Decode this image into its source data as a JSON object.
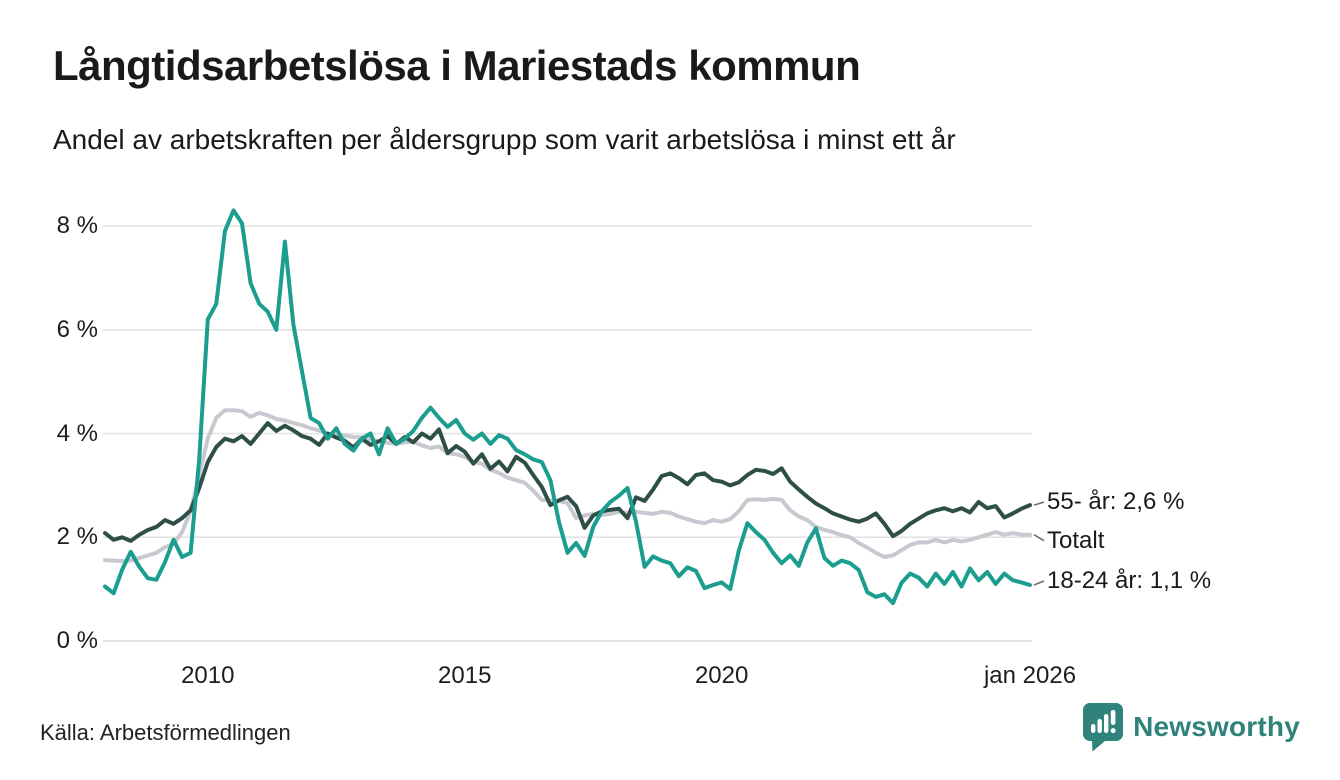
{
  "header": {
    "title": "Långtidsarbetslösa i Mariestads kommun",
    "subtitle": "Andel av arbetskraften per åldersgrupp som varit arbetslösa i minst ett år"
  },
  "footer": {
    "source": "Källa: Arbetsförmedlingen",
    "brand": "Newsworthy"
  },
  "colors": {
    "teal_line": "#1b9e8f",
    "dark_line": "#2e4f46",
    "gray_line": "#c8c8d1",
    "gridline": "#e2e2e2",
    "baseline": "#d8d8d8",
    "connector": "#6e6e6e",
    "brand_teal": "#2f837b"
  },
  "chart_data": {
    "type": "line",
    "title": "Långtidsarbetslösa i Mariestads kommun",
    "subtitle": "Andel av arbetskraften per åldersgrupp som varit arbetslösa i minst ett år",
    "unit": "%",
    "x_start": 2008.0,
    "x_step": 0.1666667,
    "x_range": [
      2008.0,
      2026.0
    ],
    "ylim": [
      0,
      8.6
    ],
    "grid": "horizontal",
    "legend_position": "right-end-labels",
    "y_axis": {
      "ticks": [
        {
          "label": "8 %",
          "value": 8
        },
        {
          "label": "6 %",
          "value": 6
        },
        {
          "label": "4 %",
          "value": 4
        },
        {
          "label": "2 %",
          "value": 2
        },
        {
          "label": "0 %",
          "value": 0
        }
      ]
    },
    "x_axis": {
      "ticks": [
        {
          "label": "2010",
          "year": 2010
        },
        {
          "label": "2015",
          "year": 2015
        },
        {
          "label": "2020",
          "year": 2020
        },
        {
          "label": "jan 2026",
          "year": 2026
        }
      ]
    },
    "series": [
      {
        "name": "55- år",
        "end_label": "55- år: 2,6 %",
        "end_value_label": "2,6 %",
        "color": "#2e4f46",
        "z": 2,
        "label_dy": -3,
        "values": [
          2.08,
          1.95,
          2.0,
          1.93,
          2.05,
          2.14,
          2.2,
          2.33,
          2.26,
          2.37,
          2.52,
          2.95,
          3.45,
          3.74,
          3.9,
          3.85,
          3.95,
          3.8,
          4.0,
          4.2,
          4.05,
          4.15,
          4.06,
          3.95,
          3.9,
          3.78,
          4.0,
          3.92,
          3.86,
          3.73,
          3.9,
          3.78,
          3.85,
          3.95,
          3.8,
          3.93,
          3.83,
          4.0,
          3.9,
          4.08,
          3.62,
          3.76,
          3.65,
          3.42,
          3.6,
          3.32,
          3.46,
          3.27,
          3.55,
          3.44,
          3.2,
          2.97,
          2.62,
          2.71,
          2.78,
          2.6,
          2.18,
          2.42,
          2.5,
          2.53,
          2.55,
          2.37,
          2.77,
          2.7,
          2.92,
          3.18,
          3.23,
          3.14,
          3.02,
          3.2,
          3.23,
          3.1,
          3.07,
          3.0,
          3.06,
          3.2,
          3.3,
          3.28,
          3.22,
          3.33,
          3.07,
          2.92,
          2.78,
          2.65,
          2.56,
          2.46,
          2.4,
          2.34,
          2.3,
          2.36,
          2.46,
          2.26,
          2.02,
          2.12,
          2.26,
          2.36,
          2.46,
          2.52,
          2.56,
          2.5,
          2.56,
          2.48,
          2.68,
          2.56,
          2.6,
          2.38,
          2.46,
          2.55,
          2.62
        ]
      },
      {
        "name": "Totalt",
        "end_label": "Totalt",
        "end_value_label": "",
        "color": "#c8c8d1",
        "z": 1,
        "label_dy": 6,
        "values": [
          1.56,
          1.55,
          1.54,
          1.55,
          1.6,
          1.65,
          1.7,
          1.81,
          1.87,
          2.1,
          2.5,
          3.2,
          3.9,
          4.3,
          4.45,
          4.45,
          4.43,
          4.32,
          4.4,
          4.35,
          4.28,
          4.25,
          4.2,
          4.16,
          4.1,
          4.06,
          4.0,
          3.96,
          3.96,
          3.93,
          3.93,
          3.88,
          3.86,
          3.82,
          3.8,
          3.83,
          3.84,
          3.77,
          3.72,
          3.75,
          3.62,
          3.6,
          3.55,
          3.45,
          3.42,
          3.3,
          3.24,
          3.15,
          3.1,
          3.05,
          2.9,
          2.72,
          2.71,
          2.7,
          2.66,
          2.37,
          2.42,
          2.45,
          2.43,
          2.45,
          2.49,
          2.47,
          2.49,
          2.47,
          2.45,
          2.49,
          2.47,
          2.4,
          2.35,
          2.3,
          2.27,
          2.33,
          2.3,
          2.35,
          2.5,
          2.72,
          2.73,
          2.72,
          2.74,
          2.72,
          2.52,
          2.4,
          2.33,
          2.2,
          2.14,
          2.1,
          2.04,
          2.0,
          1.89,
          1.8,
          1.7,
          1.62,
          1.65,
          1.75,
          1.85,
          1.9,
          1.9,
          1.95,
          1.9,
          1.95,
          1.92,
          1.95,
          2.0,
          2.05,
          2.1,
          2.05,
          2.08,
          2.05,
          2.05
        ]
      },
      {
        "name": "18-24 år",
        "end_label": "18-24 år: 1,1 %",
        "end_value_label": "1,1 %",
        "color": "#1b9e8f",
        "z": 3,
        "label_dy": -4,
        "values": [
          1.05,
          0.92,
          1.37,
          1.72,
          1.43,
          1.21,
          1.18,
          1.52,
          1.95,
          1.62,
          1.7,
          3.5,
          6.2,
          6.5,
          7.9,
          8.3,
          8.05,
          6.9,
          6.5,
          6.35,
          6.0,
          7.7,
          6.1,
          5.2,
          4.3,
          4.2,
          3.9,
          4.1,
          3.8,
          3.67,
          3.9,
          4.0,
          3.6,
          4.1,
          3.8,
          3.9,
          4.05,
          4.3,
          4.5,
          4.3,
          4.13,
          4.26,
          4.0,
          3.88,
          4.0,
          3.8,
          3.97,
          3.9,
          3.68,
          3.6,
          3.5,
          3.45,
          3.1,
          2.3,
          1.7,
          1.89,
          1.64,
          2.2,
          2.5,
          2.68,
          2.8,
          2.95,
          2.3,
          1.43,
          1.63,
          1.55,
          1.5,
          1.25,
          1.42,
          1.35,
          1.02,
          1.08,
          1.13,
          1.0,
          1.74,
          2.27,
          2.1,
          1.95,
          1.7,
          1.5,
          1.65,
          1.45,
          1.9,
          2.17,
          1.6,
          1.45,
          1.55,
          1.5,
          1.37,
          0.94,
          0.85,
          0.9,
          0.73,
          1.12,
          1.3,
          1.22,
          1.05,
          1.3,
          1.1,
          1.33,
          1.05,
          1.4,
          1.17,
          1.33,
          1.1,
          1.3,
          1.17,
          1.13,
          1.08
        ]
      }
    ]
  }
}
